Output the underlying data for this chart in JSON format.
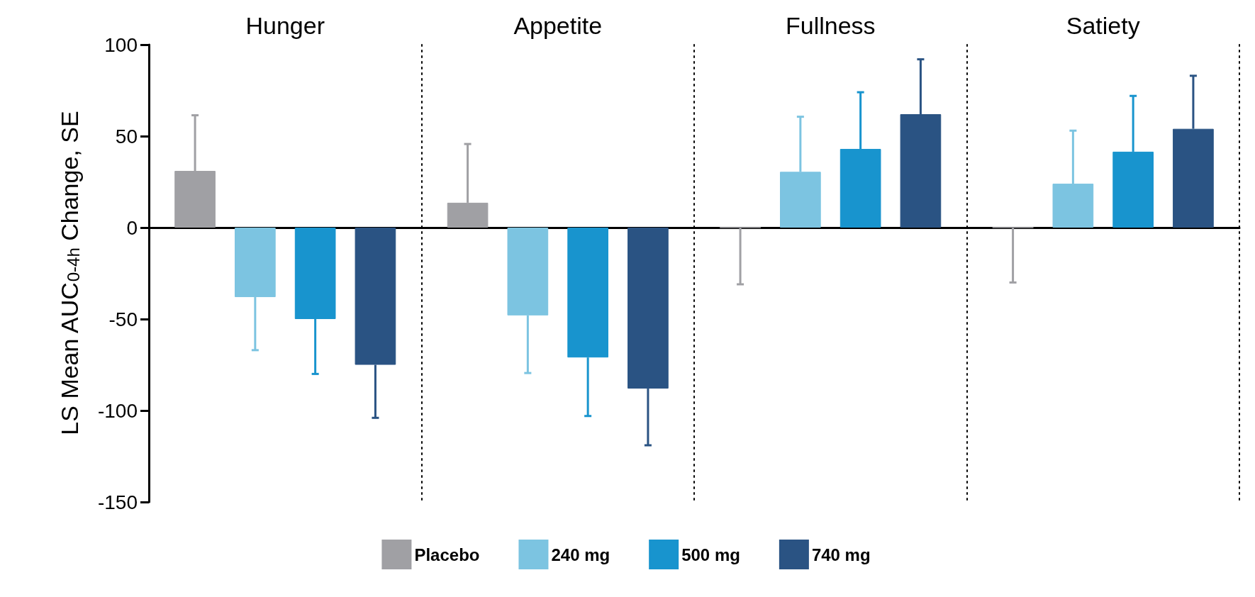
{
  "chart_data": {
    "type": "bar",
    "ylabel": "LS Mean AUC$_{0-4h}$ Change, SE",
    "categories": [
      "Hunger",
      "Appetite",
      "Fullness",
      "Satiety"
    ],
    "series": [
      {
        "name": "Placebo",
        "color": "#a0a0a4",
        "values": [
          31,
          13.6,
          0,
          0
        ],
        "errors": [
          [
            31,
            61.4
          ],
          [
            13.6,
            45.7
          ],
          [
            -31,
            0
          ],
          [
            -30,
            0
          ]
        ]
      },
      {
        "name": "240 mg",
        "color": "#7cc4e1",
        "values": [
          -38,
          -48,
          30.5,
          24
        ],
        "errors": [
          [
            -67,
            -38
          ],
          [
            -79.5,
            -48
          ],
          [
            30.5,
            60.6
          ],
          [
            24,
            53
          ]
        ]
      },
      {
        "name": "500 mg",
        "color": "#1894ce",
        "values": [
          -50,
          -71,
          43,
          41.5
        ],
        "errors": [
          [
            -80,
            -50
          ],
          [
            -103,
            -71
          ],
          [
            43,
            74
          ],
          [
            41.5,
            72
          ]
        ]
      },
      {
        "name": "740 mg",
        "color": "#2a5383",
        "values": [
          -75,
          -88,
          62,
          54
        ],
        "errors": [
          [
            -104,
            -75
          ],
          [
            -119,
            -88
          ],
          [
            62,
            92
          ],
          [
            54,
            83
          ]
        ]
      }
    ],
    "ylim": [
      -150,
      100
    ],
    "yticks": [
      -150,
      -100,
      -50,
      0,
      50,
      100
    ],
    "grid": false,
    "legend": "bottom"
  }
}
